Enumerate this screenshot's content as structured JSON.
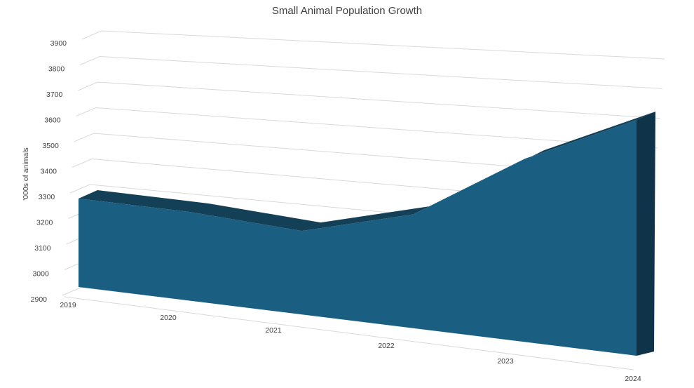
{
  "chart_data": {
    "type": "area",
    "title": "Small Animal Population Growth",
    "xlabel": "",
    "ylabel": "'000s of animals",
    "categories": [
      "2019",
      "2020",
      "2021",
      "2022",
      "2023",
      "2024"
    ],
    "series": [
      {
        "values": [
          3250,
          3240,
          3210,
          3310,
          3540,
          3700
        ]
      }
    ],
    "ylim": [
      2900,
      3900
    ],
    "yticks": [
      "2900",
      "3000",
      "3100",
      "3200",
      "3300",
      "3400",
      "3500",
      "3600",
      "3700",
      "3800",
      "3900"
    ],
    "grid": true,
    "legend": "none",
    "colors": {
      "front": "#1a5f82",
      "top": "#133f57",
      "side": "#0f3349",
      "grid": "#d9d9d9",
      "text": "#404040"
    }
  }
}
